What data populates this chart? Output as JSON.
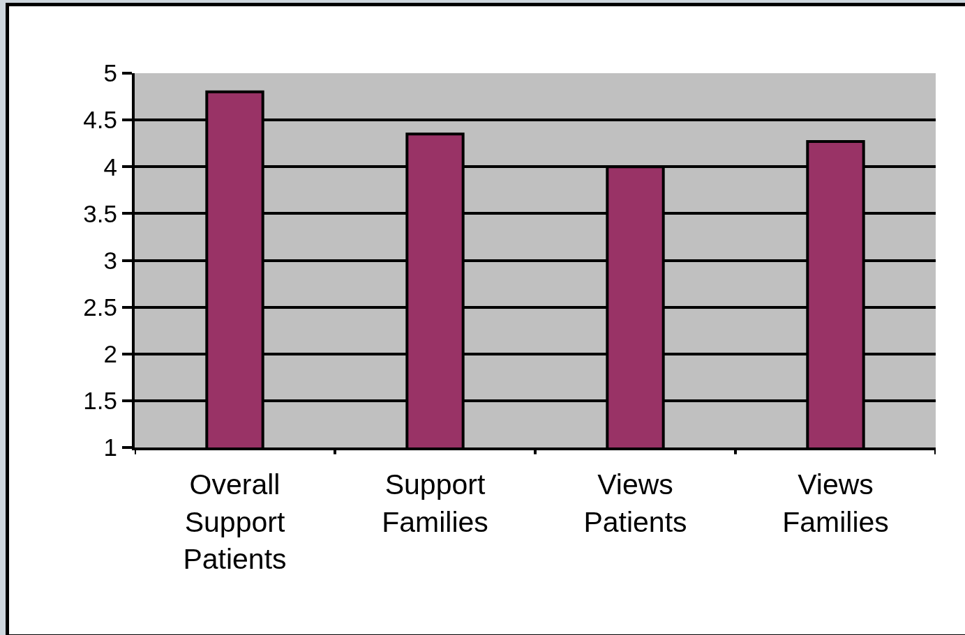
{
  "chart_data": {
    "type": "bar",
    "categories": [
      "Overall Support Patients",
      "Support Families",
      "Views Patients",
      "Views Families"
    ],
    "values": [
      4.8,
      4.35,
      4.0,
      4.27
    ],
    "color": "#993366",
    "ylim": [
      1,
      5
    ],
    "yticks": [
      1,
      1.5,
      2,
      2.5,
      3,
      3.5,
      4,
      4.5,
      5
    ],
    "grid": "y"
  }
}
